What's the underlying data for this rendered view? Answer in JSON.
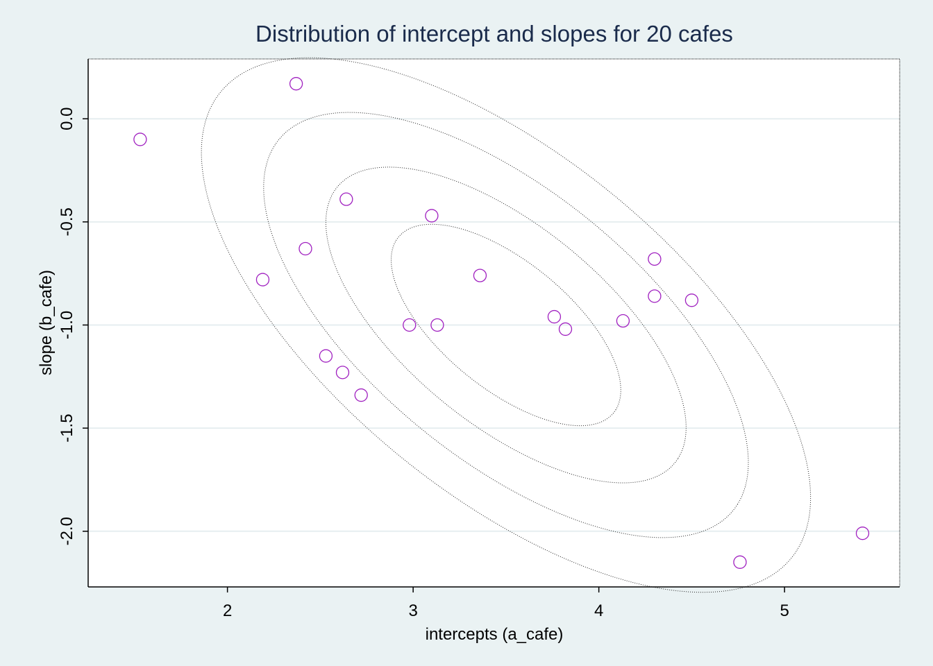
{
  "chart_data": {
    "type": "scatter",
    "title": "Distribution of intercept and slopes for 20 cafes",
    "xlabel": "intercepts (a_cafe)",
    "ylabel": "slope (b_cafe)",
    "xlim": [
      1.25,
      5.62
    ],
    "ylim": [
      -2.27,
      0.29
    ],
    "x_ticks": [
      2,
      3,
      4,
      5
    ],
    "x_tick_labels": [
      "2",
      "3",
      "4",
      "5"
    ],
    "y_ticks": [
      0.0,
      -0.5,
      -1.0,
      -1.5,
      -2.0
    ],
    "y_tick_labels": [
      "0.0",
      "-0.5",
      "-1.0",
      "-1.5",
      "-2.0"
    ],
    "grid": "horizontal",
    "marker_color": "#a020c0",
    "series": [
      {
        "marker": "hollow-circle",
        "x": [
          2.37,
          1.53,
          2.64,
          3.1,
          2.42,
          2.19,
          3.36,
          4.3,
          4.3,
          4.5,
          2.98,
          3.13,
          3.76,
          3.82,
          4.13,
          2.53,
          2.62,
          2.72,
          4.76,
          5.42
        ],
        "y": [
          0.17,
          -0.1,
          -0.39,
          -0.47,
          -0.63,
          -0.78,
          -0.76,
          -0.68,
          -0.86,
          -0.88,
          -1.0,
          -1.0,
          -0.96,
          -1.02,
          -0.98,
          -1.15,
          -1.23,
          -1.34,
          -2.15,
          -2.01
        ]
      }
    ],
    "contours": {
      "style": "dotted",
      "center": [
        3.5,
        -1.0
      ],
      "semi_axes": [
        [
          0.72,
          0.32
        ],
        [
          1.13,
          0.5
        ],
        [
          1.52,
          0.675
        ],
        [
          1.91,
          0.85
        ]
      ],
      "direction": [
        0.82,
        -0.572
      ]
    }
  }
}
